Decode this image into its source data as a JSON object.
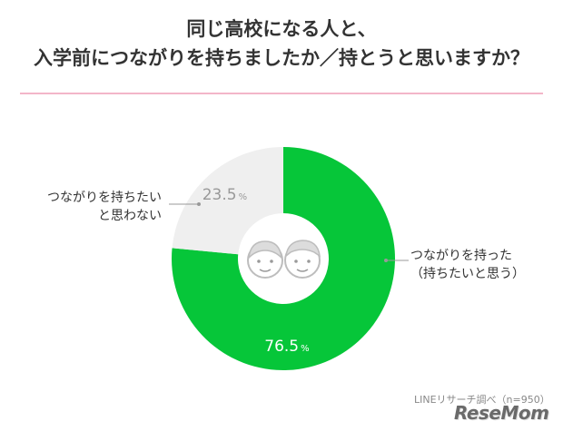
{
  "title": {
    "line1": "同じ高校になる人と、",
    "line2": "入学前につながりを持ちましたか／持とうと思いますか？"
  },
  "chart_data": {
    "type": "pie",
    "donut": true,
    "series": [
      {
        "label_lines": [
          "つながりを持った",
          "（持ちたいと思う）"
        ],
        "value": 76.5,
        "display": "76.5",
        "unit": "%",
        "color": "#06c639",
        "value_color": "#ffffff"
      },
      {
        "label_lines": [
          "つながりを持ちたい",
          "と思わない"
        ],
        "value": 23.5,
        "display": "23.5",
        "unit": "%",
        "color": "#efefef",
        "value_color": "#999999"
      }
    ]
  },
  "colors": {
    "rule": "#f3b6c9",
    "leader": "#999999"
  },
  "center_icon": "two-faces-icon",
  "source": "LINEリサーチ調べ（n=950）",
  "logo": "ReseMom"
}
